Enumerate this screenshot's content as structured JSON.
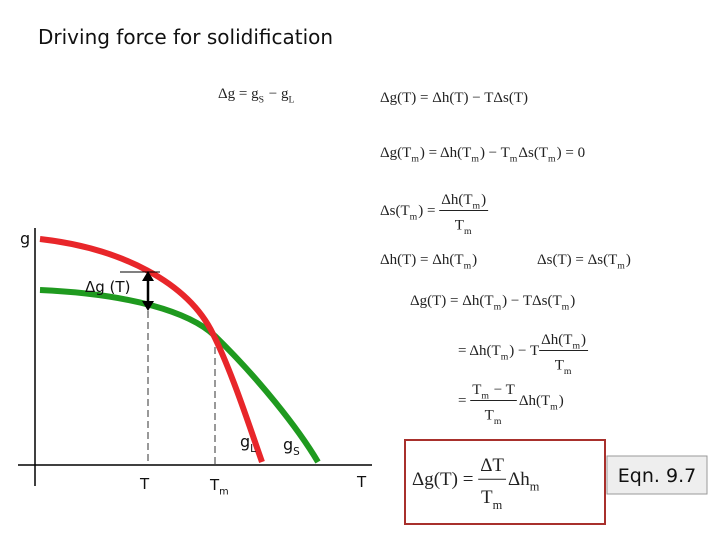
{
  "title": "Driving force for solidification",
  "equations": [
    [
      "Δg = g",
      {
        "sub": "S"
      },
      " − g",
      {
        "sub": "L"
      }
    ],
    [
      "Δg(T) = Δh(T) − TΔs(T)"
    ],
    [
      "Δg(T",
      {
        "sub": "m"
      },
      ") = Δh(T",
      {
        "sub": "m"
      },
      ") − T",
      {
        "sub": "m"
      },
      "Δs(T",
      {
        "sub": "m"
      },
      ") = 0"
    ],
    [
      "Δs(T",
      {
        "sub": "m"
      },
      ") = ",
      {
        "num": [
          "Δh(T",
          {
            "sub": "m"
          },
          ")"
        ],
        "den": [
          "T",
          {
            "sub": "m"
          }
        ]
      }
    ],
    [
      "Δh(T) = Δh(T",
      {
        "sub": "m"
      },
      ")"
    ],
    [
      "Δs(T) = Δs(T",
      {
        "sub": "m"
      },
      ")"
    ],
    [
      "Δg(T) = Δh(T",
      {
        "sub": "m"
      },
      ") − TΔs(T",
      {
        "sub": "m"
      },
      ")"
    ],
    [
      "= Δh(T",
      {
        "sub": "m"
      },
      ") − T",
      {
        "num": [
          "Δh(T",
          {
            "sub": "m"
          },
          ")"
        ],
        "den": [
          "T",
          {
            "sub": "m"
          }
        ]
      }
    ],
    [
      "= ",
      {
        "num": [
          "T",
          {
            "sub": "m"
          },
          " − T"
        ],
        "den": [
          "T",
          {
            "sub": "m"
          }
        ]
      },
      "Δh(T",
      {
        "sub": "m"
      },
      ")"
    ]
  ],
  "key_equation": [
    "Δg(T) = ",
    {
      "num": [
        "ΔT"
      ],
      "den": [
        "T",
        {
          "sub": "m"
        }
      ]
    },
    "Δh",
    {
      "sub": "m"
    }
  ],
  "equation_tag": "Eqn. 9.7",
  "diagram": {
    "y_axis_label": "g",
    "difference_label": "Δg (T)",
    "liquid_label": [
      "g",
      {
        "sub": "L"
      }
    ],
    "solid_label": [
      "g",
      {
        "sub": "S"
      }
    ],
    "temperature_label": "T",
    "melting_label": [
      "T",
      {
        "sub": "m"
      }
    ],
    "x_axis_label": "T"
  }
}
